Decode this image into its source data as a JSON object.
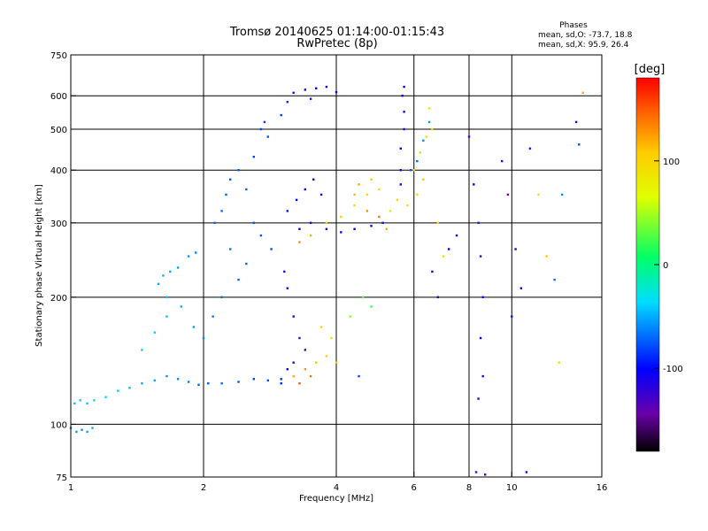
{
  "chart_data": {
    "type": "scatter",
    "title": "Tromsø 20140625 01:14:00-01:15:43",
    "subtitle": "RwPretec (8p)",
    "xlabel": "Frequency [MHz]",
    "ylabel": "Stationary phase Virtual Height [km]",
    "xscale": "log",
    "yscale": "log",
    "xlim": [
      1,
      16
    ],
    "ylim": [
      75,
      750
    ],
    "xticks": [
      1,
      2,
      4,
      6,
      8,
      10,
      16
    ],
    "yticks": [
      75,
      100,
      200,
      300,
      400,
      500,
      600,
      750
    ],
    "grid": true,
    "stats": {
      "heading": "Phases",
      "line1": "mean, sd,O: -73.7, 18.8",
      "line2": "mean, sd,X:  95.9, 26.4"
    },
    "colorbar": {
      "label": "[deg]",
      "range": [
        -180,
        180
      ],
      "ticks": [
        -100,
        0,
        100
      ],
      "colormap": "rainbow"
    },
    "series": [
      {
        "points": [
          [
            1.0,
            98,
            -60
          ],
          [
            1.03,
            96,
            -55
          ],
          [
            1.06,
            97,
            -58
          ],
          [
            1.09,
            96,
            -52
          ],
          [
            1.12,
            98,
            -50
          ],
          [
            1.02,
            112,
            -45
          ],
          [
            1.05,
            114,
            -40
          ],
          [
            1.09,
            112,
            -42
          ],
          [
            1.13,
            114,
            -40
          ],
          [
            1.2,
            116,
            -38
          ],
          [
            1.28,
            120,
            -40
          ],
          [
            1.36,
            122,
            -45
          ],
          [
            1.45,
            125,
            -50
          ],
          [
            1.55,
            127,
            -52
          ],
          [
            1.65,
            130,
            -55
          ],
          [
            1.75,
            128,
            -60
          ],
          [
            1.85,
            126,
            -65
          ],
          [
            1.95,
            124,
            -70
          ],
          [
            2.05,
            125,
            -75
          ],
          [
            2.2,
            125,
            -70
          ],
          [
            2.4,
            126,
            -78
          ],
          [
            2.6,
            128,
            -82
          ],
          [
            2.8,
            127,
            -80
          ],
          [
            3.0,
            128,
            -85
          ],
          [
            1.45,
            150,
            -40
          ],
          [
            1.55,
            165,
            -38
          ],
          [
            1.65,
            180,
            -42
          ],
          [
            1.78,
            190,
            -50
          ],
          [
            1.9,
            170,
            -55
          ],
          [
            2.0,
            160,
            -60
          ],
          [
            2.1,
            180,
            -65
          ],
          [
            2.2,
            200,
            -68
          ],
          [
            1.58,
            215,
            -50
          ],
          [
            1.62,
            225,
            -48
          ],
          [
            1.68,
            230,
            -52
          ],
          [
            1.75,
            235,
            -55
          ],
          [
            1.85,
            250,
            -58
          ],
          [
            1.92,
            255,
            -62
          ],
          [
            1.65,
            200,
            -45
          ],
          [
            2.12,
            300,
            -70
          ],
          [
            2.2,
            320,
            -70
          ],
          [
            2.25,
            350,
            -72
          ],
          [
            2.3,
            380,
            -74
          ],
          [
            2.4,
            400,
            -75
          ],
          [
            2.5,
            360,
            -72
          ],
          [
            2.6,
            300,
            -75
          ],
          [
            2.7,
            280,
            -78
          ],
          [
            2.85,
            260,
            -80
          ],
          [
            2.5,
            240,
            -70
          ],
          [
            2.3,
            260,
            -68
          ],
          [
            2.4,
            220,
            -72
          ],
          [
            2.6,
            430,
            -80
          ],
          [
            2.7,
            500,
            -82
          ],
          [
            2.75,
            520,
            -84
          ],
          [
            2.8,
            480,
            -78
          ],
          [
            3.0,
            540,
            -85
          ],
          [
            3.1,
            580,
            -90
          ],
          [
            3.2,
            610,
            -95
          ],
          [
            3.4,
            620,
            -98
          ],
          [
            3.6,
            625,
            -100
          ],
          [
            3.8,
            630,
            -102
          ],
          [
            4.0,
            612,
            -105
          ],
          [
            3.5,
            590,
            -92
          ],
          [
            3.1,
            320,
            -95
          ],
          [
            3.25,
            340,
            -100
          ],
          [
            3.4,
            360,
            -110
          ],
          [
            3.55,
            380,
            -115
          ],
          [
            3.7,
            350,
            -118
          ],
          [
            3.3,
            290,
            -105
          ],
          [
            3.5,
            300,
            -112
          ],
          [
            3.8,
            290,
            -120
          ],
          [
            4.1,
            285,
            -110
          ],
          [
            4.4,
            290,
            -108
          ],
          [
            4.8,
            295,
            -100
          ],
          [
            5.1,
            300,
            -95
          ],
          [
            3.05,
            230,
            -110
          ],
          [
            3.1,
            210,
            -115
          ],
          [
            3.2,
            180,
            -120
          ],
          [
            3.3,
            160,
            -125
          ],
          [
            3.4,
            150,
            -130
          ],
          [
            3.2,
            140,
            -115
          ],
          [
            3.1,
            135,
            -100
          ],
          [
            3.0,
            125,
            -90
          ],
          [
            3.2,
            130,
            120
          ],
          [
            3.4,
            135,
            125
          ],
          [
            3.6,
            140,
            110
          ],
          [
            3.8,
            145,
            105
          ],
          [
            3.9,
            160,
            90
          ],
          [
            3.7,
            170,
            100
          ],
          [
            3.5,
            130,
            140
          ],
          [
            3.3,
            125,
            150
          ],
          [
            3.3,
            270,
            130
          ],
          [
            3.5,
            280,
            120
          ],
          [
            3.8,
            300,
            110
          ],
          [
            4.1,
            310,
            100
          ],
          [
            4.4,
            330,
            90
          ],
          [
            4.7,
            350,
            100
          ],
          [
            5.0,
            360,
            95
          ],
          [
            5.3,
            320,
            90
          ],
          [
            4.5,
            370,
            120
          ],
          [
            4.8,
            380,
            110
          ],
          [
            5.5,
            340,
            100
          ],
          [
            5.8,
            330,
            90
          ],
          [
            6.1,
            350,
            95
          ],
          [
            5.6,
            400,
            -110
          ],
          [
            5.6,
            450,
            -100
          ],
          [
            5.7,
            500,
            -95
          ],
          [
            5.7,
            550,
            -100
          ],
          [
            5.65,
            600,
            -105
          ],
          [
            5.7,
            630,
            -110
          ],
          [
            5.6,
            370,
            -100
          ],
          [
            6.0,
            400,
            105
          ],
          [
            6.2,
            440,
            100
          ],
          [
            6.4,
            480,
            95
          ],
          [
            6.6,
            500,
            100
          ],
          [
            6.3,
            380,
            110
          ],
          [
            6.5,
            560,
            90
          ],
          [
            6.8,
            300,
            95
          ],
          [
            7.0,
            250,
            98
          ],
          [
            6.6,
            230,
            -110
          ],
          [
            6.8,
            200,
            -120
          ],
          [
            7.2,
            260,
            -100
          ],
          [
            7.5,
            280,
            -110
          ],
          [
            8.0,
            480,
            -130
          ],
          [
            8.2,
            370,
            -110
          ],
          [
            8.4,
            300,
            -90
          ],
          [
            8.5,
            250,
            -130
          ],
          [
            8.6,
            200,
            -95
          ],
          [
            8.5,
            160,
            -100
          ],
          [
            8.6,
            130,
            -110
          ],
          [
            8.4,
            115,
            -100
          ],
          [
            8.7,
            76,
            -130
          ],
          [
            8.3,
            77,
            -90
          ],
          [
            9.5,
            420,
            -130
          ],
          [
            9.8,
            350,
            -140
          ],
          [
            10.2,
            260,
            -110
          ],
          [
            10.5,
            210,
            -100
          ],
          [
            10.0,
            180,
            -95
          ],
          [
            10.8,
            77,
            -120
          ],
          [
            11.0,
            450,
            -90
          ],
          [
            11.5,
            350,
            90
          ],
          [
            12.0,
            250,
            110
          ],
          [
            12.5,
            220,
            -70
          ],
          [
            12.8,
            140,
            90
          ],
          [
            13.0,
            350,
            -60
          ],
          [
            14.0,
            520,
            -110
          ],
          [
            14.2,
            460,
            -80
          ],
          [
            14.5,
            610,
            120
          ],
          [
            5.9,
            400,
            -75
          ],
          [
            6.1,
            420,
            -70
          ],
          [
            6.3,
            470,
            -60
          ],
          [
            6.5,
            520,
            -55
          ],
          [
            4.0,
            140,
            110
          ],
          [
            4.5,
            130,
            -80
          ],
          [
            4.3,
            180,
            40
          ],
          [
            4.6,
            200,
            30
          ],
          [
            4.8,
            190,
            20
          ],
          [
            4.4,
            350,
            115
          ],
          [
            4.7,
            320,
            130
          ],
          [
            5.0,
            310,
            140
          ],
          [
            5.2,
            290,
            120
          ]
        ]
      }
    ]
  }
}
